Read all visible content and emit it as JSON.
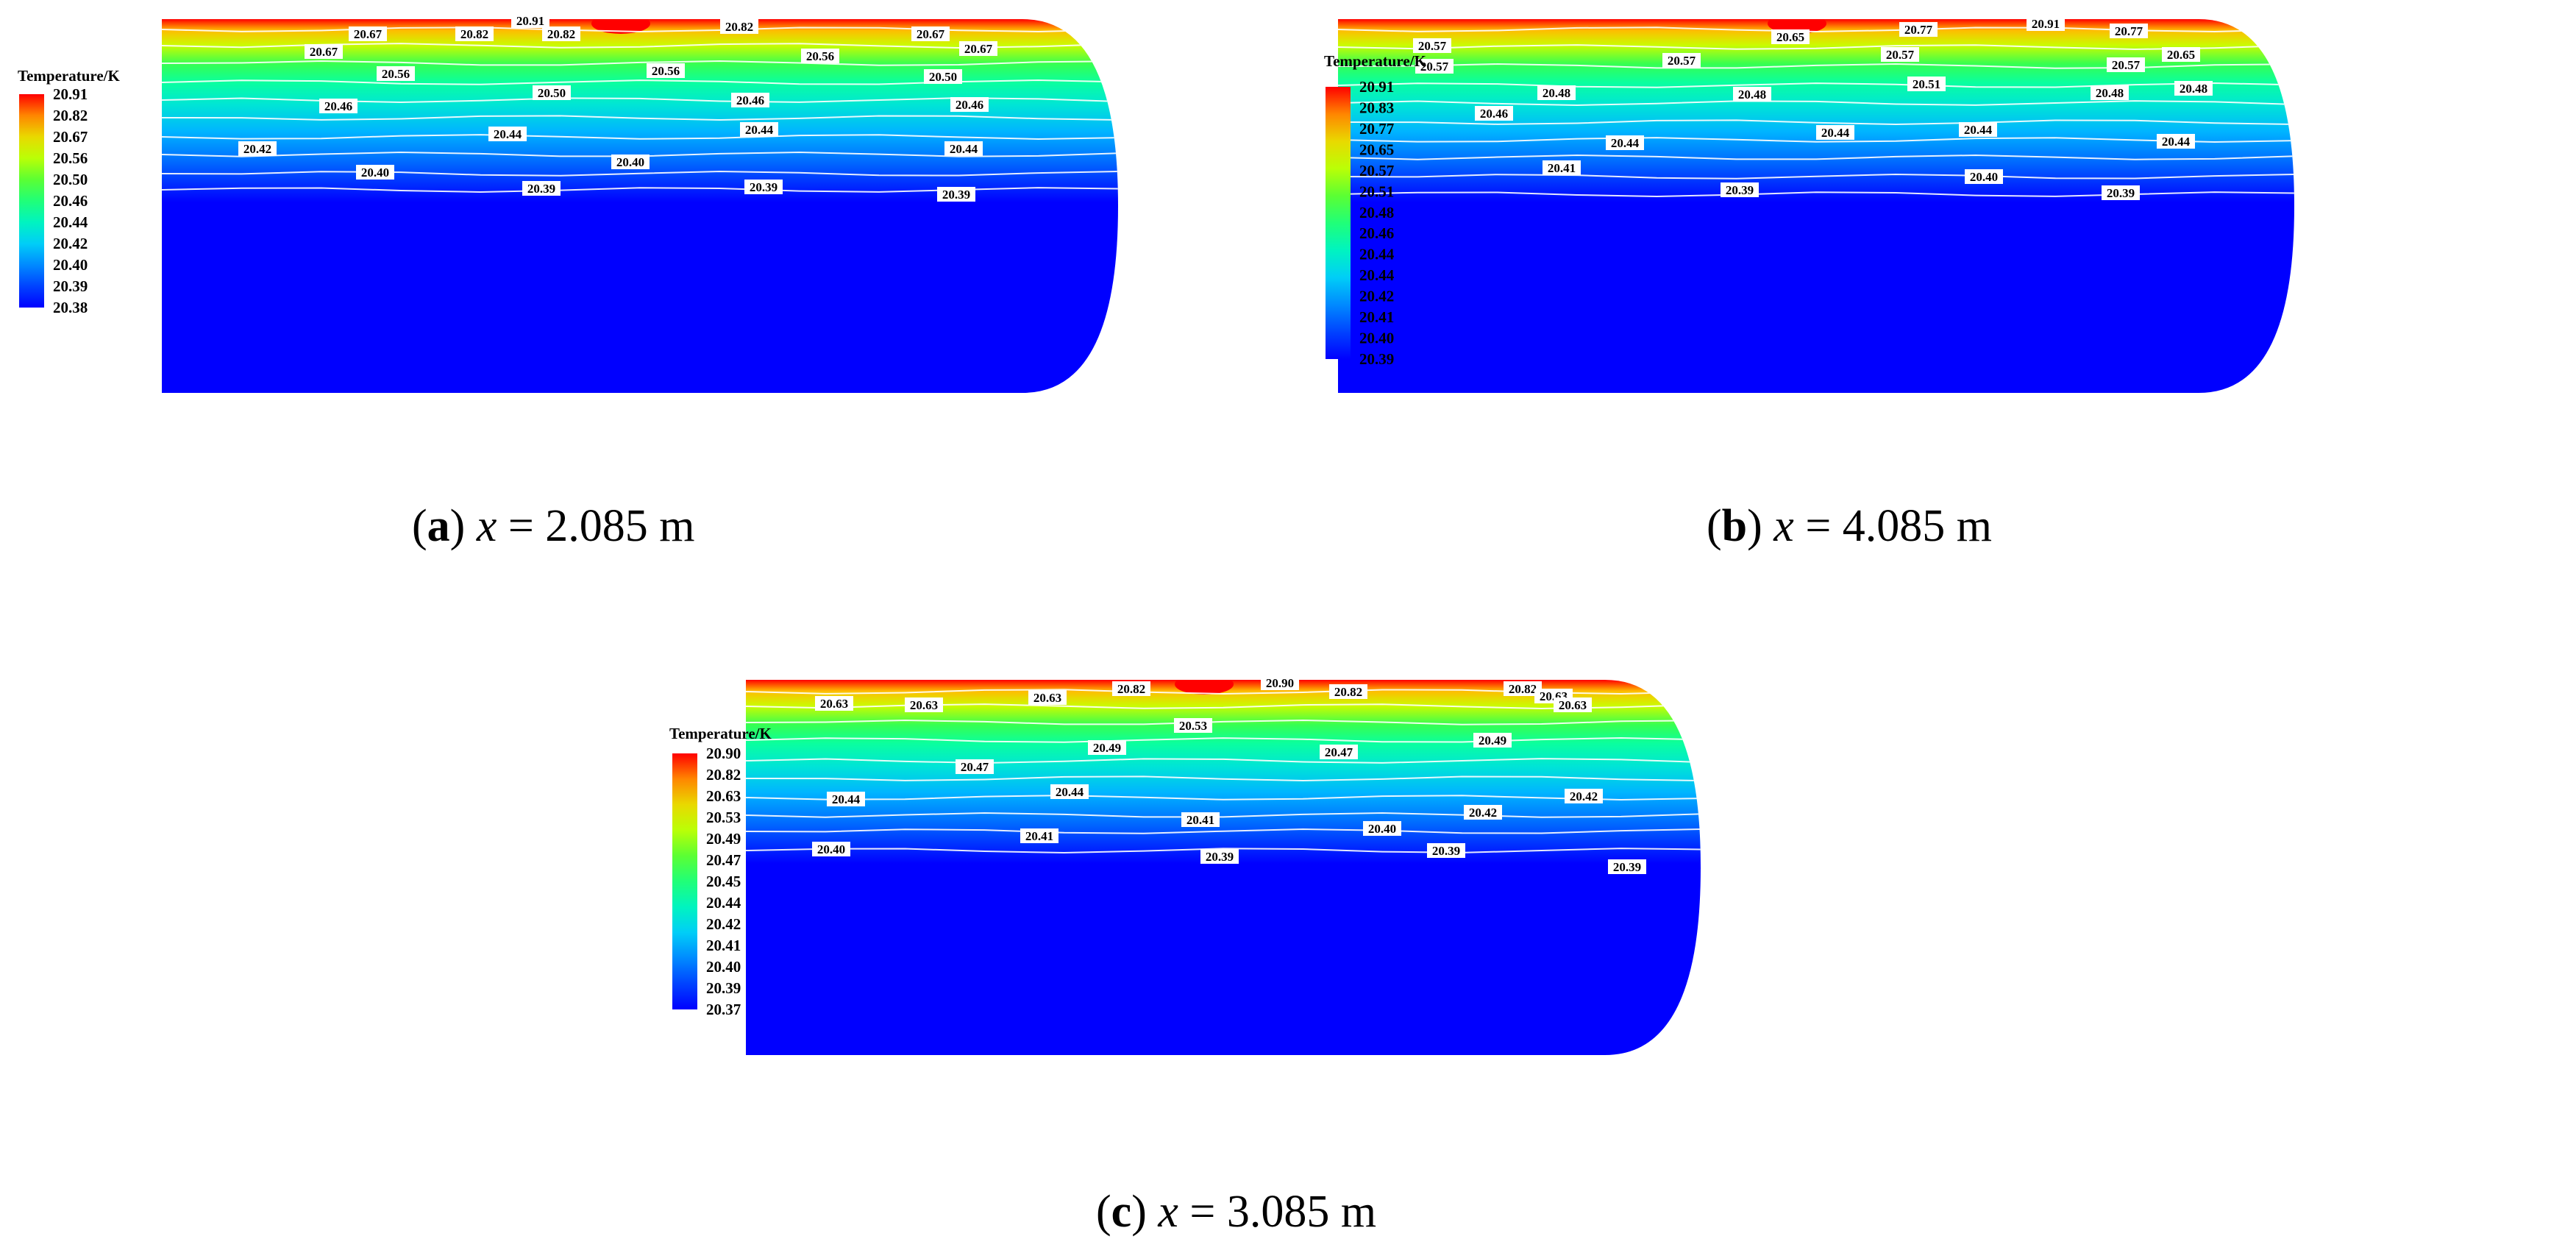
{
  "chart_data": [
    {
      "type": "heatmap",
      "panel_label": "a",
      "caption_var": "x",
      "caption_value": "= 2.085 m",
      "colorbar": {
        "title": "Temperature/K",
        "ticks": [
          "20.91",
          "20.82",
          "20.67",
          "20.56",
          "20.50",
          "20.46",
          "20.44",
          "20.42",
          "20.40",
          "20.39",
          "20.38"
        ]
      },
      "contours": [
        {
          "value": 20.91,
          "labels": [
            "20.91"
          ]
        },
        {
          "value": 20.82,
          "labels": [
            "20.82",
            "20.82",
            "20.82"
          ]
        },
        {
          "value": 20.67,
          "labels": [
            "20.67",
            "20.67",
            "20.67",
            "20.67"
          ]
        },
        {
          "value": 20.56,
          "labels": [
            "20.56",
            "20.56",
            "20.56"
          ]
        },
        {
          "value": 20.5,
          "labels": [
            "20.50",
            "20.50"
          ]
        },
        {
          "value": 20.46,
          "labels": [
            "20.46",
            "20.46",
            "20.46"
          ]
        },
        {
          "value": 20.44,
          "labels": [
            "20.44",
            "20.44",
            "20.44"
          ]
        },
        {
          "value": 20.42,
          "labels": [
            "20.42"
          ]
        },
        {
          "value": 20.4,
          "labels": [
            "20.40",
            "20.40"
          ]
        },
        {
          "value": 20.39,
          "labels": [
            "20.39",
            "20.39",
            "20.39"
          ]
        }
      ]
    },
    {
      "type": "heatmap",
      "panel_label": "b",
      "caption_var": "x",
      "caption_value": "= 4.085 m",
      "colorbar": {
        "title": "Temperature/K",
        "ticks": [
          "20.91",
          "20.83",
          "20.77",
          "20.65",
          "20.57",
          "20.51",
          "20.48",
          "20.46",
          "20.44",
          "20.44",
          "20.42",
          "20.41",
          "20.40",
          "20.39"
        ]
      },
      "contours": [
        {
          "value": 20.91,
          "labels": [
            "20.91"
          ]
        },
        {
          "value": 20.77,
          "labels": [
            "20.77",
            "20.77"
          ]
        },
        {
          "value": 20.65,
          "labels": [
            "20.65",
            "20.65"
          ]
        },
        {
          "value": 20.57,
          "labels": [
            "20.57",
            "20.57",
            "20.57",
            "20.57",
            "20.57"
          ]
        },
        {
          "value": 20.51,
          "labels": [
            "20.51"
          ]
        },
        {
          "value": 20.48,
          "labels": [
            "20.48",
            "20.48",
            "20.48",
            "20.48"
          ]
        },
        {
          "value": 20.46,
          "labels": [
            "20.46"
          ]
        },
        {
          "value": 20.44,
          "labels": [
            "20.44",
            "20.44",
            "20.44",
            "20.44"
          ]
        },
        {
          "value": 20.41,
          "labels": [
            "20.41"
          ]
        },
        {
          "value": 20.4,
          "labels": [
            "20.40"
          ]
        },
        {
          "value": 20.39,
          "labels": [
            "20.39",
            "20.39"
          ]
        }
      ]
    },
    {
      "type": "heatmap",
      "panel_label": "c",
      "caption_var": "x",
      "caption_value": "= 3.085 m",
      "colorbar": {
        "title": "Temperature/K",
        "ticks": [
          "20.90",
          "20.82",
          "20.63",
          "20.53",
          "20.49",
          "20.47",
          "20.45",
          "20.44",
          "20.42",
          "20.41",
          "20.40",
          "20.39",
          "20.37"
        ]
      },
      "contours": [
        {
          "value": 20.9,
          "labels": [
            "20.90"
          ]
        },
        {
          "value": 20.82,
          "labels": [
            "20.82",
            "20.82",
            "20.82"
          ]
        },
        {
          "value": 20.63,
          "labels": [
            "20.63",
            "20.63",
            "20.63",
            "20.63",
            "20.63"
          ]
        },
        {
          "value": 20.53,
          "labels": [
            "20.53"
          ]
        },
        {
          "value": 20.49,
          "labels": [
            "20.49",
            "20.49"
          ]
        },
        {
          "value": 20.47,
          "labels": [
            "20.47",
            "20.47"
          ]
        },
        {
          "value": 20.44,
          "labels": [
            "20.44",
            "20.44"
          ]
        },
        {
          "value": 20.42,
          "labels": [
            "20.42",
            "20.42"
          ]
        },
        {
          "value": 20.41,
          "labels": [
            "20.41",
            "20.41"
          ]
        },
        {
          "value": 20.4,
          "labels": [
            "20.40",
            "20.40"
          ]
        },
        {
          "value": 20.39,
          "labels": [
            "20.39",
            "20.39",
            "20.39"
          ]
        }
      ]
    }
  ],
  "colors": {
    "colormap": [
      "#0000ff",
      "#0060ff",
      "#00c8ff",
      "#00ffb0",
      "#40ff40",
      "#c8ff00",
      "#ffc000",
      "#ff0000"
    ],
    "contour_line": "#ffffff",
    "label_box": "#ffffff",
    "label_text": "#000000"
  }
}
